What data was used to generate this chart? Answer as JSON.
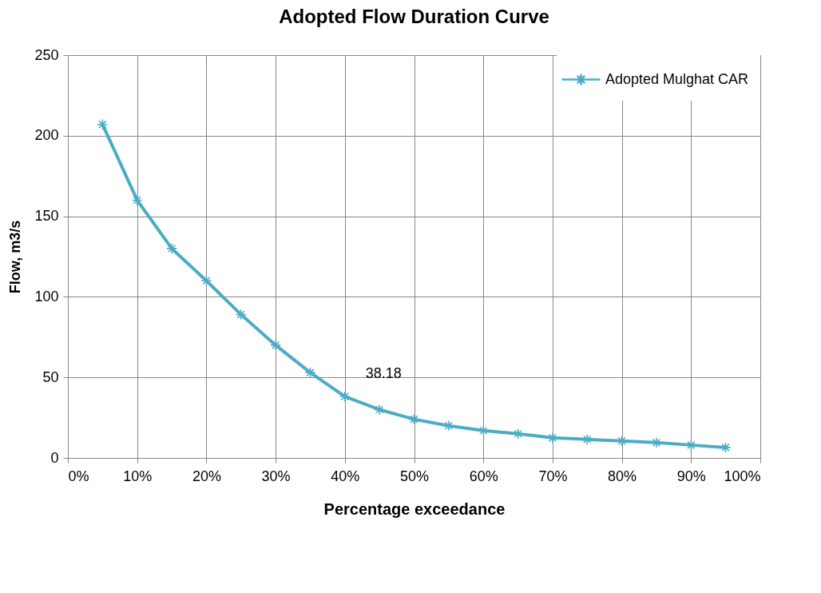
{
  "chart_data": {
    "type": "line",
    "title": "Adopted Flow Duration Curve",
    "xlabel": "Percentage exceedance",
    "ylabel": "Flow, m3/s",
    "x": [
      5,
      10,
      15,
      20,
      25,
      30,
      35,
      40,
      45,
      50,
      55,
      60,
      65,
      70,
      75,
      80,
      85,
      90,
      95
    ],
    "series": [
      {
        "name": "Adopted Mulghat CAR",
        "color": "#4bacc6",
        "values": [
          207,
          160,
          130,
          110,
          89,
          70,
          53,
          38.18,
          30,
          24,
          20,
          17,
          15,
          12.5,
          11.5,
          10.5,
          9.5,
          8,
          6.5
        ],
        "value_labels": [
          null,
          null,
          null,
          null,
          null,
          null,
          null,
          "38.18",
          null,
          null,
          null,
          null,
          null,
          null,
          null,
          null,
          null,
          null,
          null
        ]
      }
    ],
    "xlim": [
      0,
      100
    ],
    "xticks": [
      {
        "value": 0,
        "label": "0%"
      },
      {
        "value": 10,
        "label": "10%"
      },
      {
        "value": 20,
        "label": "20%"
      },
      {
        "value": 30,
        "label": "30%"
      },
      {
        "value": 40,
        "label": "40%"
      },
      {
        "value": 50,
        "label": "50%"
      },
      {
        "value": 60,
        "label": "60%"
      },
      {
        "value": 70,
        "label": "70%"
      },
      {
        "value": 80,
        "label": "80%"
      },
      {
        "value": 90,
        "label": "90%"
      },
      {
        "value": 100,
        "label": "100%"
      }
    ],
    "ylim": [
      0,
      250
    ],
    "yticks": [
      0,
      50,
      100,
      150,
      200,
      250
    ],
    "grid": true,
    "legend": "top right",
    "marker": "cross",
    "line_style": "solid"
  }
}
